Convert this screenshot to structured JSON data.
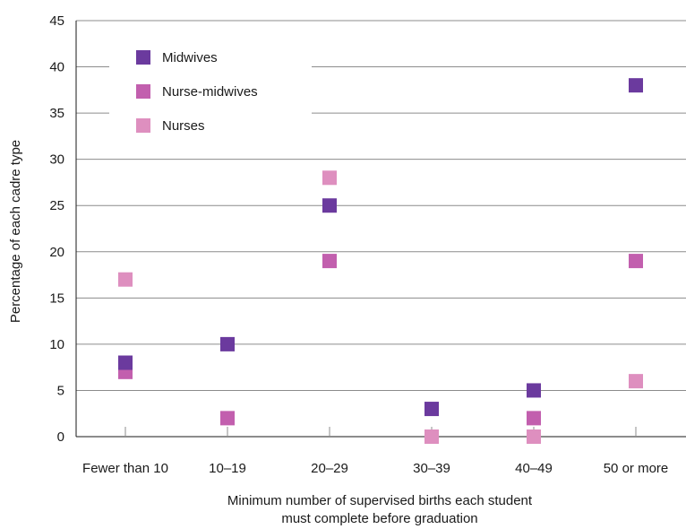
{
  "chart_data": {
    "type": "scatter",
    "title": "",
    "xlabel_lines": [
      "Minimum number of supervised births each student",
      "must complete before graduation"
    ],
    "ylabel": "Percentage of each cadre type",
    "categories": [
      "Fewer than 10",
      "10–19",
      "20–29",
      "30–39",
      "40–49",
      "50 or more"
    ],
    "ylim": [
      0,
      45
    ],
    "yticks": [
      0,
      5,
      10,
      15,
      20,
      25,
      30,
      35,
      40,
      45
    ],
    "grid": true,
    "legend_position": "top-left",
    "series": [
      {
        "name": "Midwives",
        "color": "#6b3a9e",
        "values": [
          8,
          10,
          25,
          3,
          5,
          38
        ]
      },
      {
        "name": "Nurse-midwives",
        "color": "#c25fae",
        "values": [
          7,
          2,
          19,
          null,
          2,
          19
        ]
      },
      {
        "name": "Nurses",
        "color": "#de8fbf",
        "values": [
          17,
          null,
          28,
          0,
          0,
          6
        ]
      }
    ]
  }
}
